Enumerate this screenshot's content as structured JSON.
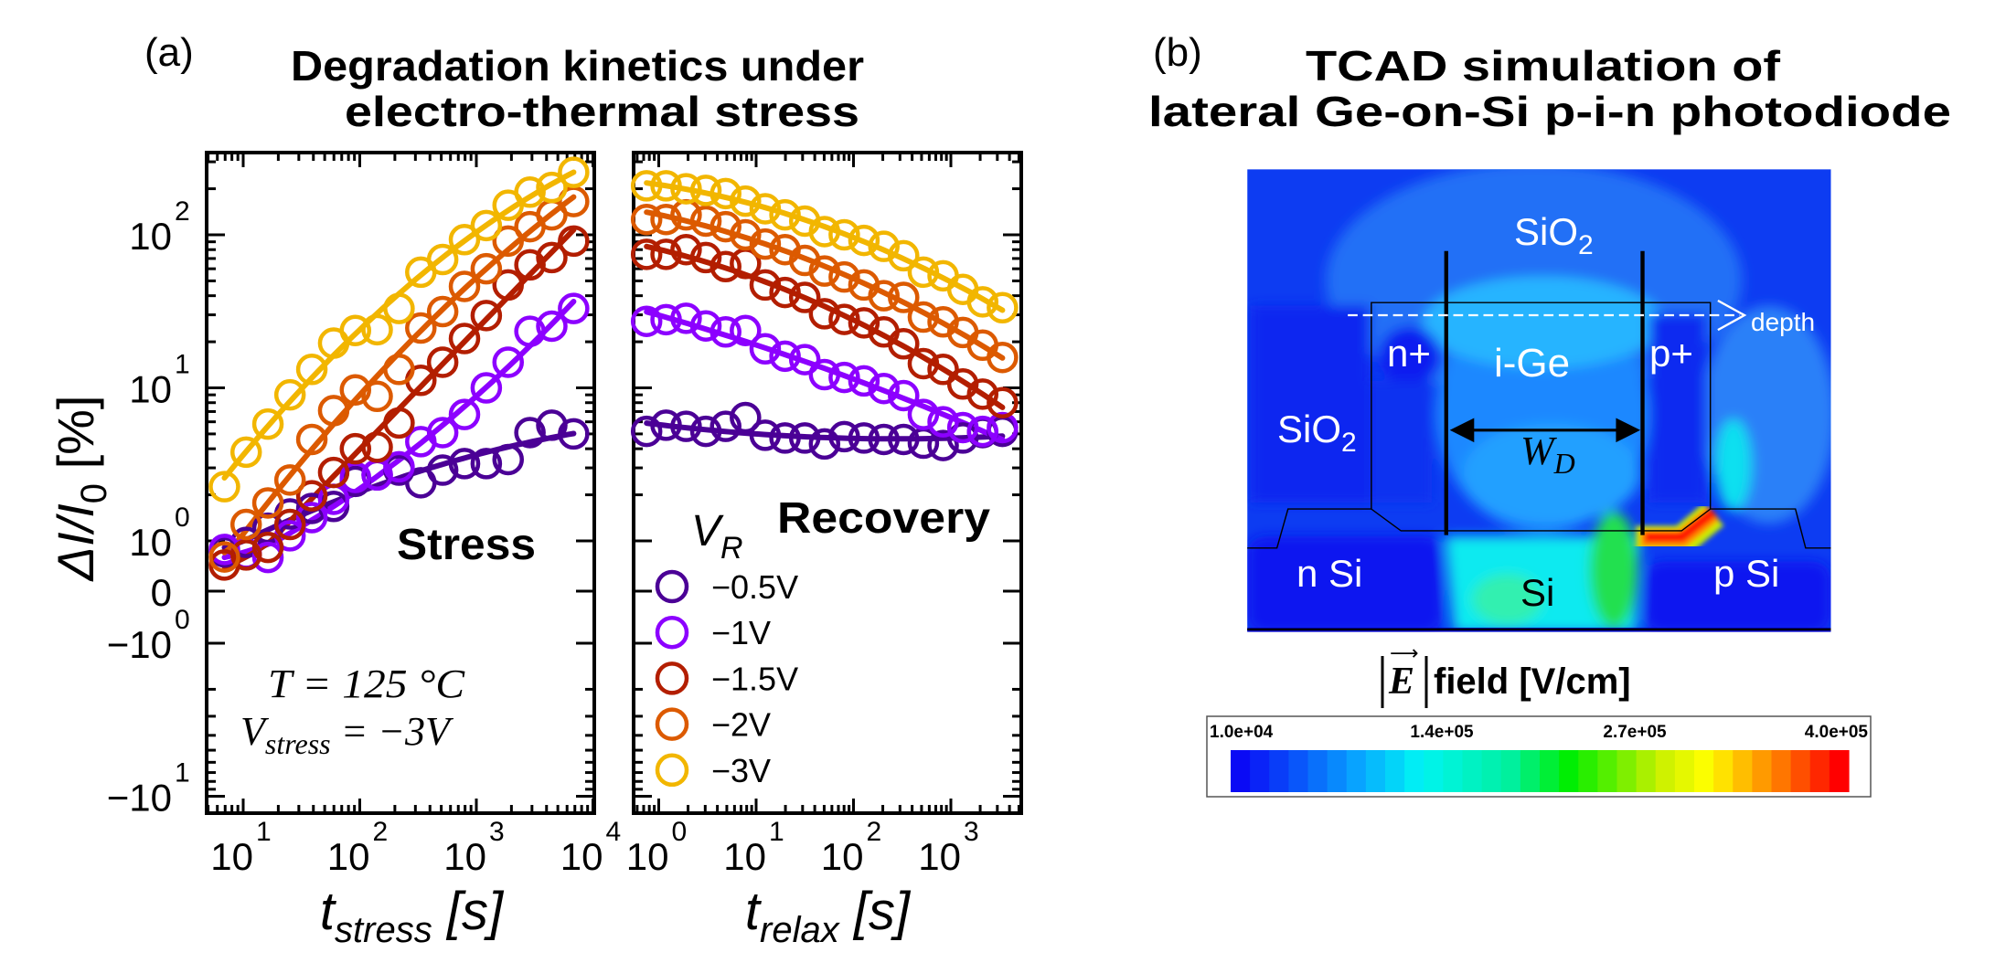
{
  "panel_a": {
    "label": "(a)",
    "title_line1": "Degradation kinetics under",
    "title_line2": "electro-thermal stress",
    "ylabel": {
      "main": "ΔI/I",
      "sub": "0",
      "unit": " [%]"
    },
    "stress_tag": "Stress",
    "recovery_tag": "Recovery",
    "condition_T": "T = 125 °C",
    "condition_V": {
      "main": "V",
      "sub": "stress",
      "rest": " = −3V"
    },
    "legend_title": {
      "main": "V",
      "sub": "R"
    }
  },
  "panel_b": {
    "label": "(b)",
    "title_line1": "TCAD simulation of",
    "title_line2": "lateral Ge-on-Si p-i-n photodiode",
    "regions": {
      "sio2_top": "SiO",
      "sio2_top_sub": "2",
      "sio2_left": "SiO",
      "sio2_left_sub": "2",
      "n_plus": "n+",
      "i_ge": "i-Ge",
      "p_plus": "p+",
      "depth": "depth",
      "wd": "W",
      "wd_sub": "D",
      "n_si": "n Si",
      "si": "Si",
      "p_si": "p Si"
    },
    "colorbar": {
      "title_symbol": "E",
      "title_text": " field [V/cm]",
      "tick_labels": [
        "1.0e+04",
        "1.4e+05",
        "2.7e+05",
        "4.0e+05"
      ],
      "range": [
        10000,
        400000
      ],
      "colormap": [
        "#0a0af5",
        "#08a8ff",
        "#00f4f4",
        "#00f0a0",
        "#00ee00",
        "#c8f000",
        "#ffff00",
        "#ff7a00",
        "#ff0000"
      ]
    }
  },
  "chart_data": [
    {
      "type": "scatter",
      "panel": "stress",
      "xlabel": {
        "main": "t",
        "sub": "stress",
        "unit": " [s]"
      },
      "ylabel": "ΔI/I0 [%]",
      "xscale": "log",
      "yscale": "symlog",
      "xlim": [
        4.85,
        10000
      ],
      "ylim": [
        -12,
        370
      ],
      "xticks": [
        10,
        100,
        1000,
        10000
      ],
      "xticklabels": [
        "10^1",
        "10^2",
        "10^3",
        "10^4"
      ],
      "yticks": [
        100,
        10,
        1,
        0,
        -1,
        -10
      ],
      "yticklabels": [
        "10^2",
        "10^1",
        "10^0",
        "0",
        "−10^0",
        "−10^1"
      ],
      "fit_lines": true,
      "x": [
        6.9,
        10.6,
        16.3,
        25.2,
        38.8,
        59.7,
        91.8,
        141,
        217,
        334,
        514,
        791,
        1217,
        1873,
        2883,
        4437,
        6828
      ],
      "series": [
        {
          "name": "−0.5V",
          "color": "#4b0096",
          "values": [
            0.78,
            0.97,
            1.21,
            1.5,
            1.63,
            1.68,
            2.45,
            2.7,
            2.9,
            2.4,
            2.9,
            3.2,
            3.2,
            3.4,
            5.1,
            5.7,
            5.0
          ]
        },
        {
          "name": "−1V",
          "color": "#8c00ff",
          "values": [
            0.83,
            0.74,
            0.67,
            1.08,
            1.42,
            1.87,
            2.6,
            2.7,
            3.05,
            4.45,
            5.1,
            6.7,
            10,
            14.7,
            23.4,
            25.3,
            33
          ]
        },
        {
          "name": "−1.5V",
          "color": "#b31e00",
          "values": [
            0.52,
            0.72,
            0.87,
            1.28,
            1.97,
            2.8,
            4.0,
            4.1,
            5.9,
            11.2,
            14.7,
            21,
            29.7,
            47,
            63.6,
            71,
            91
          ]
        },
        {
          "name": "−2V",
          "color": "#dc5a00",
          "values": [
            0.68,
            1.28,
            1.77,
            2.5,
            4.6,
            7.1,
            9.7,
            8.8,
            13.2,
            24.6,
            31.5,
            46,
            60,
            91,
            113,
            135,
            165
          ]
        },
        {
          "name": "−3V",
          "color": "#f2b600",
          "values": [
            2.26,
            3.8,
            5.8,
            9,
            13.2,
            19.6,
            23.7,
            24,
            33,
            57,
            69,
            93,
            115,
            156,
            190,
            204,
            256
          ]
        }
      ]
    },
    {
      "type": "scatter",
      "panel": "recovery",
      "xlabel": {
        "main": "t",
        "sub": "relax",
        "unit": " [s]"
      },
      "xscale": "log",
      "yscale": "symlog",
      "xlim": [
        0.56,
        5370
      ],
      "ylim": [
        -12,
        370
      ],
      "xticks": [
        1,
        10,
        100,
        1000
      ],
      "xticklabels": [
        "10^0",
        "10^1",
        "10^2",
        "10^3"
      ],
      "yticks": [
        100,
        10,
        1,
        0,
        -1,
        -10
      ],
      "fit_lines": true,
      "x": [
        0.75,
        1.19,
        1.91,
        3.05,
        4.87,
        7.77,
        12.4,
        19.8,
        31.6,
        50.4,
        80.4,
        128,
        205,
        327,
        522,
        833,
        1329,
        2121,
        3385
      ],
      "series": [
        {
          "name": "−0.5V",
          "color": "#4b0096",
          "values": [
            5.2,
            5.7,
            5.6,
            5.2,
            5.6,
            6.4,
            4.9,
            4.7,
            4.7,
            4.3,
            4.8,
            4.7,
            4.6,
            4.6,
            4.35,
            4.2,
            4.7,
            5.1,
            5.2
          ]
        },
        {
          "name": "−1V",
          "color": "#8c00ff",
          "values": [
            27.2,
            27.9,
            28.5,
            25.4,
            23.2,
            23.7,
            18,
            16.1,
            15.3,
            12.2,
            11.7,
            11.1,
            9.9,
            8.9,
            6.7,
            6.0,
            5.5,
            5.2,
            5.5
          ]
        },
        {
          "name": "−1.5V",
          "color": "#b31e00",
          "values": [
            74.6,
            74.6,
            80,
            71,
            62,
            65,
            47,
            42,
            39,
            30.5,
            28,
            26.6,
            23.2,
            19.4,
            14.4,
            13.2,
            10.6,
            9.1,
            8.0
          ]
        },
        {
          "name": "−2V",
          "color": "#dc5a00",
          "values": [
            126,
            126,
            135,
            123,
            113,
            100,
            87,
            80,
            68,
            58,
            53,
            47,
            40,
            39,
            29,
            27,
            23,
            19,
            15.8
          ]
        },
        {
          "name": "−3V",
          "color": "#f2b600",
          "values": [
            209,
            209,
            200,
            195,
            186,
            166,
            148,
            135,
            123,
            105,
            100,
            92,
            84,
            73,
            57,
            54,
            44,
            36.5,
            33.4
          ]
        }
      ]
    }
  ]
}
